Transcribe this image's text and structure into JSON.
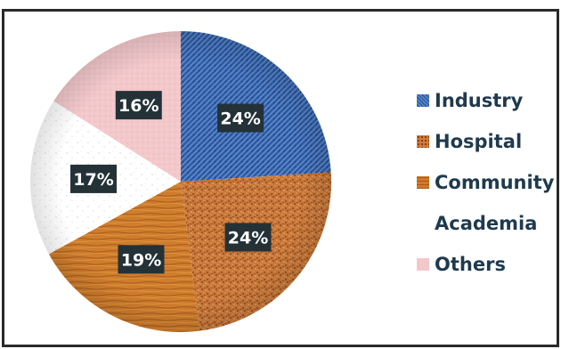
{
  "chart_data": {
    "type": "pie",
    "title": "",
    "slices": [
      {
        "label": "Industry",
        "value": 24,
        "display": "24%",
        "color": "#2f5fa8"
      },
      {
        "label": "Hospital",
        "value": 24,
        "display": "24%",
        "color": "#c9783a"
      },
      {
        "label": "Community",
        "value": 19,
        "display": "19%",
        "color": "#cf7d2d"
      },
      {
        "label": "Academia",
        "value": 17,
        "display": "17%",
        "color": "#ffffff"
      },
      {
        "label": "Others",
        "value": 16,
        "display": "16%",
        "color": "#f3c8cb"
      }
    ],
    "legend_position": "right",
    "label_style": "white text on dark box"
  },
  "legend": {
    "items": [
      {
        "label": "Industry",
        "color": "#2f5fa8"
      },
      {
        "label": "Hospital",
        "color": "#d47a3a"
      },
      {
        "label": "Community",
        "color": "#d2782a"
      },
      {
        "label": "Academia",
        "color": "#ffffff"
      },
      {
        "label": "Others",
        "color": "#f3c8cb"
      }
    ]
  }
}
